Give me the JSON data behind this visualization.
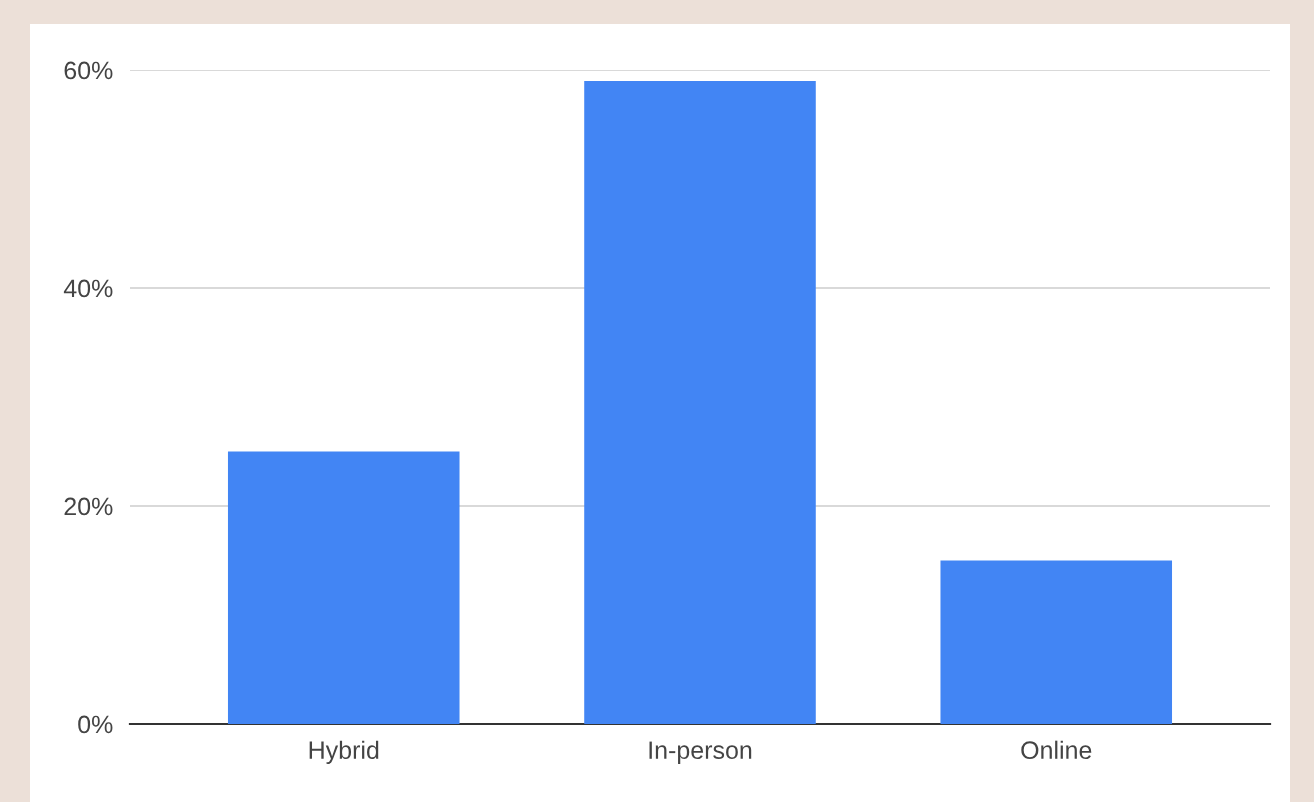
{
  "chart_data": {
    "type": "bar",
    "categories": [
      "Hybrid",
      "In-person",
      "Online"
    ],
    "values": [
      25,
      59,
      15
    ],
    "color": "#4285f4",
    "ylim": [
      0,
      60
    ],
    "yticks": [
      {
        "value": 0,
        "label": "0%"
      },
      {
        "value": 20,
        "label": "20%"
      },
      {
        "value": 40,
        "label": "40%"
      },
      {
        "value": 60,
        "label": "60%"
      }
    ],
    "grid": "y",
    "legend": false
  }
}
